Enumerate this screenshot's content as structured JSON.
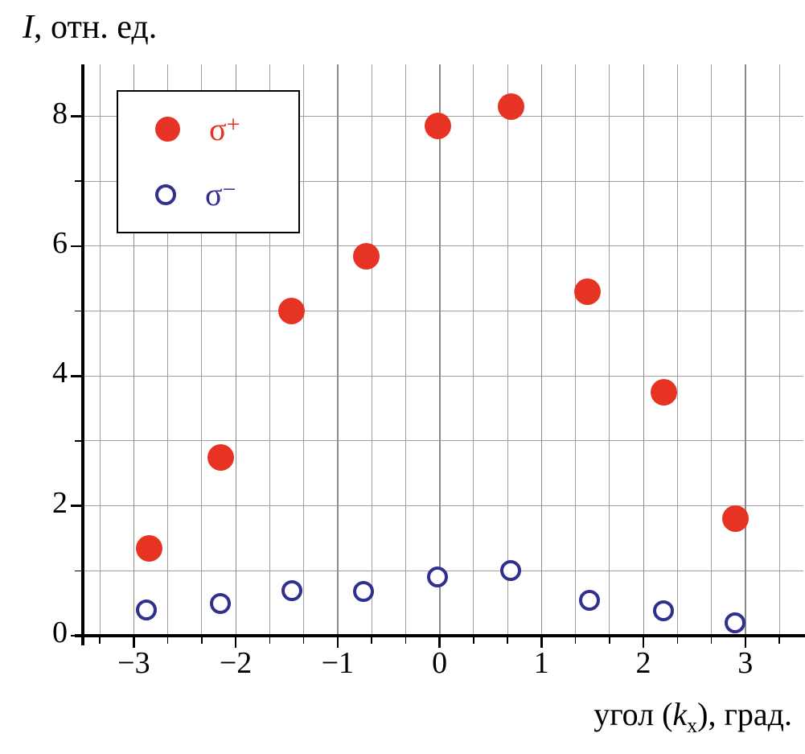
{
  "axes": {
    "y_title": {
      "var": "I",
      "rest": ", отн. ед."
    },
    "x_title": {
      "prefix": "угол (",
      "var": "k",
      "sub": "x",
      "suffix": "), град."
    }
  },
  "legend": {
    "entries": [
      {
        "base": "σ",
        "sup": "+"
      },
      {
        "base": "σ",
        "sup": "−"
      }
    ]
  },
  "chart_data": {
    "type": "scatter",
    "title": "",
    "xlabel": "угол (k_x), град.",
    "ylabel": "I, отн. ед.",
    "xlim": [
      -3.5,
      3.57
    ],
    "ylim": [
      0,
      8.8
    ],
    "x_ticks": [
      -3,
      -2,
      -1,
      0,
      1,
      2,
      3
    ],
    "y_ticks": [
      0,
      2,
      4,
      6,
      8
    ],
    "grid": true,
    "legend_position": "top-left",
    "series": [
      {
        "name": "σ+",
        "marker": "filled-circle",
        "color": "#e63323",
        "points": [
          [
            -2.85,
            1.35
          ],
          [
            -2.15,
            2.75
          ],
          [
            -1.45,
            5.0
          ],
          [
            -0.72,
            5.85
          ],
          [
            -0.02,
            7.85
          ],
          [
            0.7,
            8.15
          ],
          [
            1.45,
            5.3
          ],
          [
            2.2,
            3.75
          ],
          [
            2.9,
            1.8
          ]
        ]
      },
      {
        "name": "σ−",
        "marker": "open-circle",
        "color": "#30308f",
        "points": [
          [
            -2.88,
            0.4
          ],
          [
            -2.15,
            0.5
          ],
          [
            -1.45,
            0.7
          ],
          [
            -0.75,
            0.68
          ],
          [
            -0.02,
            0.9
          ],
          [
            0.7,
            1.0
          ],
          [
            1.47,
            0.55
          ],
          [
            2.2,
            0.38
          ],
          [
            2.9,
            0.2
          ]
        ]
      }
    ],
    "colors": {
      "grid": "#9e9e9e",
      "axis": "#000000"
    }
  }
}
